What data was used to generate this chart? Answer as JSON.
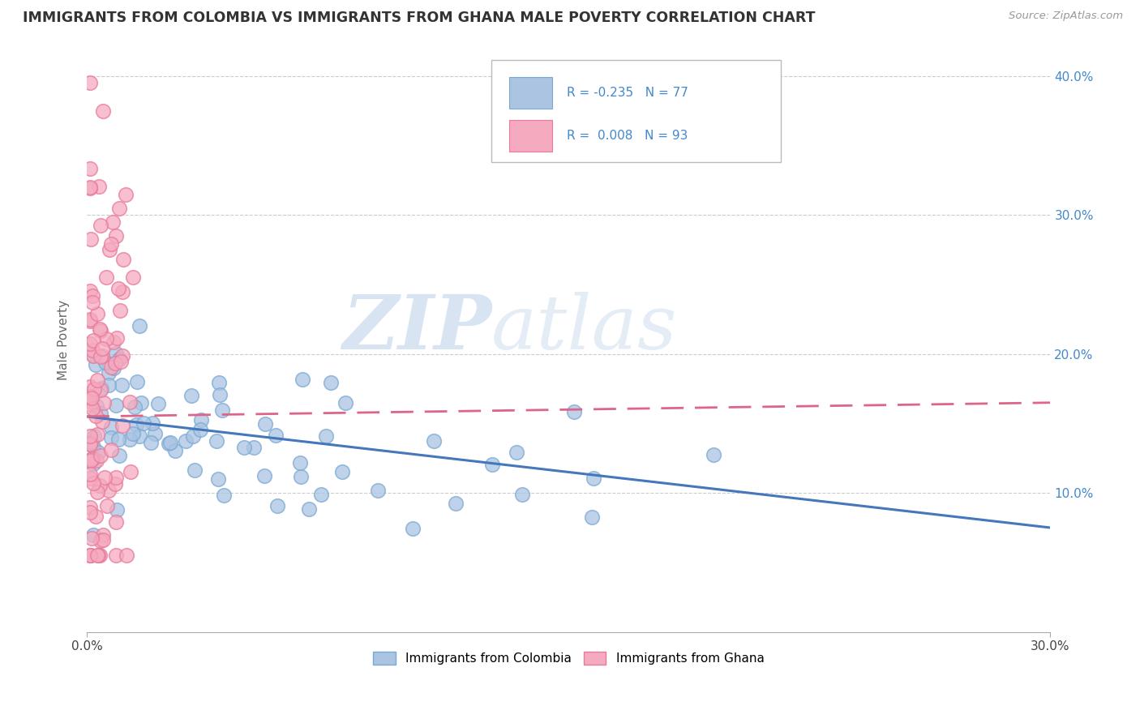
{
  "title": "IMMIGRANTS FROM COLOMBIA VS IMMIGRANTS FROM GHANA MALE POVERTY CORRELATION CHART",
  "source": "Source: ZipAtlas.com",
  "ylabel": "Male Poverty",
  "xlim": [
    0.0,
    0.3
  ],
  "ylim": [
    0.0,
    0.42
  ],
  "xtick_positions": [
    0.0,
    0.3
  ],
  "xtick_labels": [
    "0.0%",
    "30.0%"
  ],
  "ytick_positions": [
    0.1,
    0.2,
    0.3,
    0.4
  ],
  "ytick_labels": [
    "10.0%",
    "20.0%",
    "30.0%",
    "40.0%"
  ],
  "colombia_color": "#aac4e2",
  "ghana_color": "#f5aabf",
  "colombia_edge": "#7aaad4",
  "ghana_edge": "#e87a9a",
  "colombia_line_color": "#4477bb",
  "ghana_line_color": "#dd6688",
  "R_colombia": -0.235,
  "N_colombia": 77,
  "R_ghana": 0.008,
  "N_ghana": 93,
  "watermark_zip": "ZIP",
  "watermark_atlas": "atlas",
  "legend_label_colombia": "Immigrants from Colombia",
  "legend_label_ghana": "Immigrants from Ghana",
  "grid_color": "#cccccc",
  "colombia_trend_x": [
    0.0,
    0.3
  ],
  "colombia_trend_y": [
    0.155,
    0.075
  ],
  "ghana_trend_x": [
    0.0,
    0.3
  ],
  "ghana_trend_y": [
    0.155,
    0.165
  ]
}
